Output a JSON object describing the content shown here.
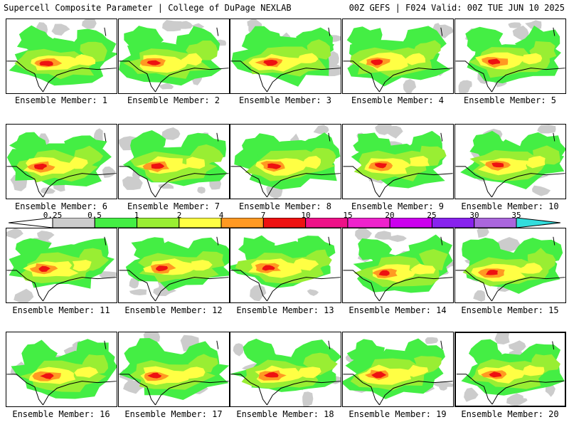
{
  "header": {
    "title_left": "Supercell Composite Parameter | College of DuPage NEXLAB",
    "title_right": "00Z GEFS | F024 Valid: 00Z TUE JUN 10 2025"
  },
  "legend": {
    "ticks": [
      "0.25",
      "0.5",
      "1",
      "2",
      "4",
      "7",
      "10",
      "15",
      "20",
      "25",
      "30",
      "35"
    ],
    "colors": [
      "#cccccc",
      "#44ee44",
      "#99ee33",
      "#ffff44",
      "#ff9922",
      "#ee1111",
      "#ee1188",
      "#ee22cc",
      "#cc00ee",
      "#8822ee",
      "#aa66dd",
      "#44dddd"
    ],
    "end_left": "#ffffff",
    "end_right": "#33dddd"
  },
  "members": [
    {
      "caption": "Ensemble Member: 1"
    },
    {
      "caption": "Ensemble Member: 2"
    },
    {
      "caption": "Ensemble Member: 3"
    },
    {
      "caption": "Ensemble Member: 4"
    },
    {
      "caption": "Ensemble Member: 5"
    },
    {
      "caption": "Ensemble Member: 6"
    },
    {
      "caption": "Ensemble Member: 7"
    },
    {
      "caption": "Ensemble Member: 8"
    },
    {
      "caption": "Ensemble Member: 9"
    },
    {
      "caption": "Ensemble Member: 10"
    },
    {
      "caption": "Ensemble Member: 11"
    },
    {
      "caption": "Ensemble Member: 12"
    },
    {
      "caption": "Ensemble Member: 13"
    },
    {
      "caption": "Ensemble Member: 14"
    },
    {
      "caption": "Ensemble Member: 15"
    },
    {
      "caption": "Ensemble Member: 16"
    },
    {
      "caption": "Ensemble Member: 17"
    },
    {
      "caption": "Ensemble Member: 18"
    },
    {
      "caption": "Ensemble Member: 19"
    },
    {
      "caption": "Ensemble Member: 20"
    }
  ]
}
